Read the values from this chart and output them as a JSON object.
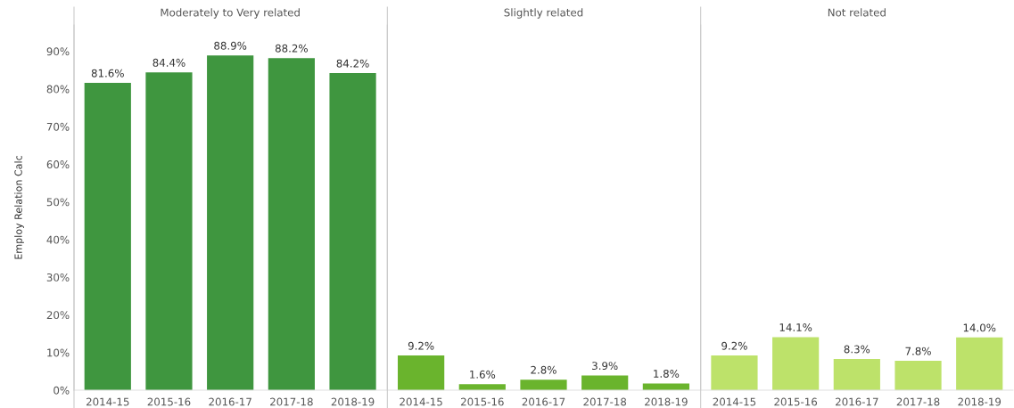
{
  "chart_data": [
    {
      "type": "bar",
      "title": "Moderately to Very related",
      "ylabel": "Employ Relation Calc",
      "categories": [
        "2014-15",
        "2015-16",
        "2016-17",
        "2017-18",
        "2018-19"
      ],
      "values": [
        81.6,
        84.4,
        88.9,
        88.2,
        84.2
      ],
      "value_labels": [
        "81.6%",
        "84.4%",
        "88.9%",
        "88.2%",
        "84.2%"
      ],
      "color": "#3f963f",
      "ylim": [
        0,
        97
      ],
      "yticks": [
        {
          "value": 0,
          "label": "0%"
        },
        {
          "value": 10,
          "label": "10%"
        },
        {
          "value": 20,
          "label": "20%"
        },
        {
          "value": 30,
          "label": "30%"
        },
        {
          "value": 40,
          "label": "40%"
        },
        {
          "value": 50,
          "label": "50%"
        },
        {
          "value": 60,
          "label": "60%"
        },
        {
          "value": 70,
          "label": "70%"
        },
        {
          "value": 80,
          "label": "80%"
        },
        {
          "value": 90,
          "label": "90%"
        }
      ],
      "grid": false
    },
    {
      "type": "bar",
      "title": "Slightly related",
      "categories": [
        "2014-15",
        "2015-16",
        "2016-17",
        "2017-18",
        "2018-19"
      ],
      "values": [
        9.2,
        1.6,
        2.8,
        3.9,
        1.8
      ],
      "value_labels": [
        "9.2%",
        "1.6%",
        "2.8%",
        "3.9%",
        "1.8%"
      ],
      "color": "#6ab42d",
      "ylim": [
        0,
        97
      ],
      "tick_labels": "x",
      "grid": false
    },
    {
      "type": "bar",
      "title": "Not related",
      "categories": [
        "2014-15",
        "2015-16",
        "2016-17",
        "2017-18",
        "2018-19"
      ],
      "values": [
        9.2,
        14.1,
        8.3,
        7.8,
        14.0
      ],
      "value_labels": [
        "9.2%",
        "14.1%",
        "8.3%",
        "7.8%",
        "14.0%"
      ],
      "color": "#bde26a",
      "ylim": [
        0,
        97
      ],
      "tick_labels": "x",
      "grid": false
    }
  ]
}
